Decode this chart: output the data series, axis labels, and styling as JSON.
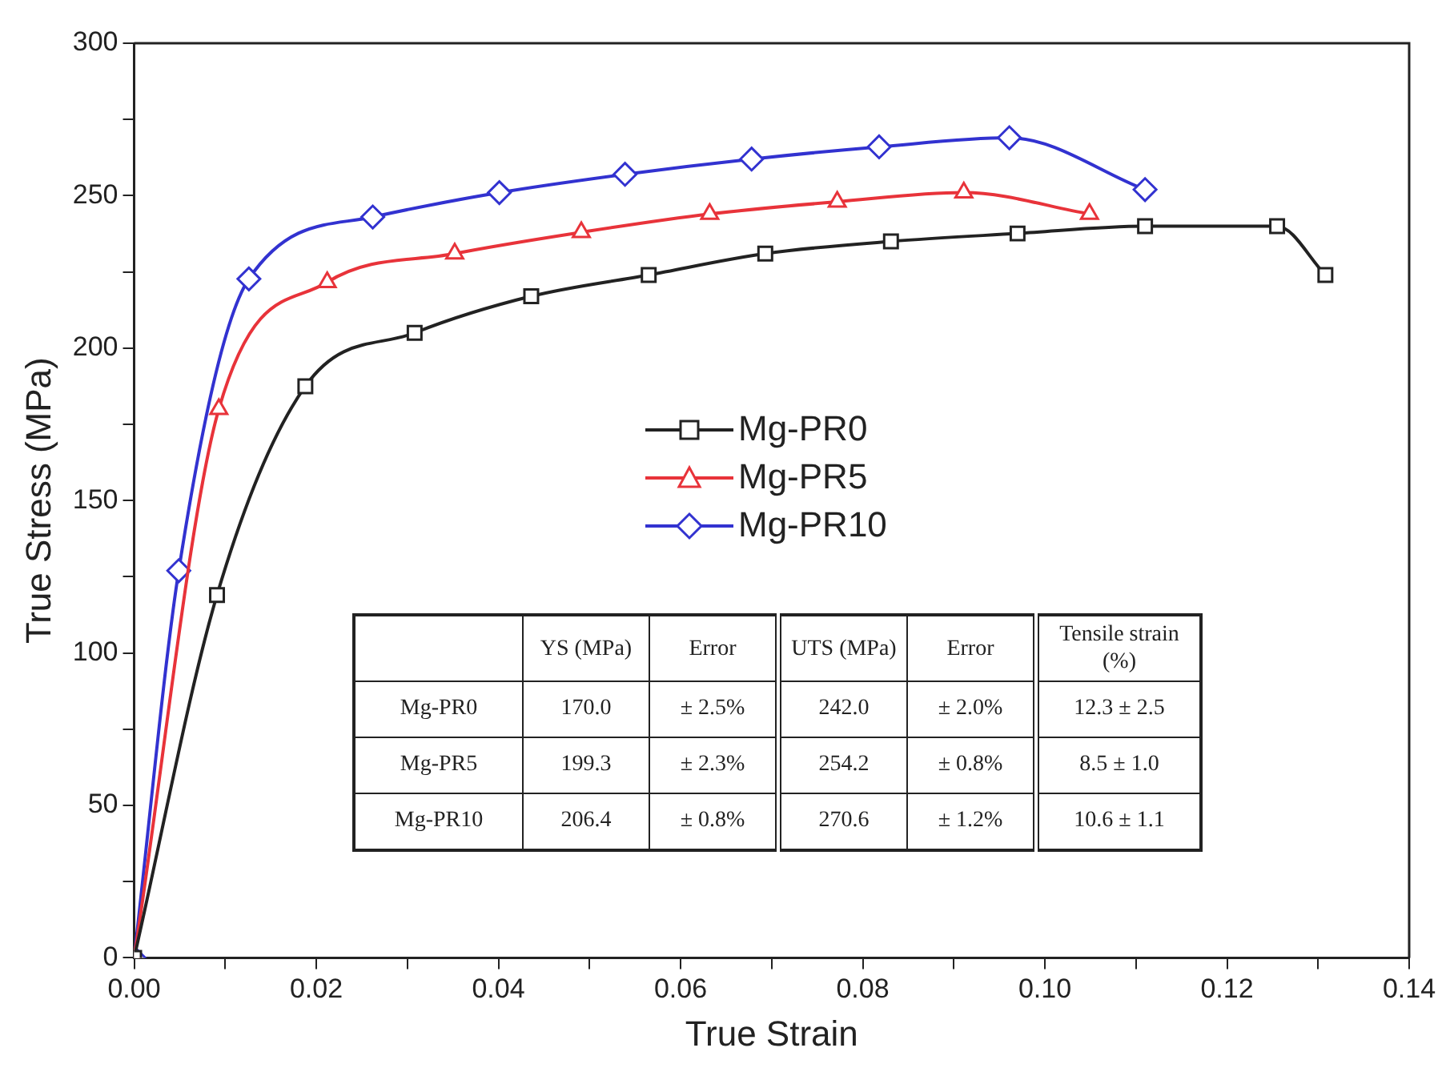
{
  "chart_data": {
    "type": "line",
    "xlabel": "True Strain",
    "ylabel": "True Stress (MPa)",
    "xlim": [
      0,
      0.14
    ],
    "ylim": [
      0,
      300
    ],
    "xticks": [
      {
        "value": 0,
        "label": "0.00"
      },
      {
        "value": 0.01,
        "label": null
      },
      0.02,
      {
        "value": 0.03,
        "label": null
      },
      0.04,
      {
        "value": 0.05,
        "label": null
      },
      0.06,
      {
        "value": 0.07,
        "label": null
      },
      0.08,
      {
        "value": 0.09,
        "label": null
      },
      {
        "value": 0.1,
        "label": "0.10"
      },
      {
        "value": 0.11,
        "label": null
      },
      0.12,
      {
        "value": 0.13,
        "label": null
      },
      0.14
    ],
    "yticks": [
      0,
      {
        "value": 25,
        "label": null
      },
      50,
      {
        "value": 75,
        "label": null
      },
      100,
      {
        "value": 125,
        "label": null
      },
      150,
      {
        "value": 175,
        "label": null
      },
      200,
      {
        "value": 225,
        "label": null
      },
      250,
      {
        "value": 275,
        "label": null
      },
      300
    ],
    "legend": "center",
    "grid": false,
    "line_style": "solid",
    "series": [
      {
        "name": "Mg-PR0",
        "color": "#222222",
        "marker": "square",
        "x": [
          0,
          0.0091,
          0.0188,
          0.0308,
          0.0436,
          0.0565,
          0.0693,
          0.0831,
          0.097,
          0.111,
          0.1255,
          0.1308
        ],
        "values": [
          0,
          119,
          187.5,
          205,
          217,
          224,
          231,
          235,
          237.6,
          240,
          240,
          224
        ]
      },
      {
        "name": "Mg-PR5",
        "color": "#e8333a",
        "marker": "triangle",
        "x": [
          0,
          0.0093,
          0.0212,
          0.0352,
          0.0491,
          0.0632,
          0.0772,
          0.0911,
          0.1049
        ],
        "values": [
          0,
          180,
          221.6,
          231,
          238,
          244,
          248,
          251,
          244
        ]
      },
      {
        "name": "Mg-PR10",
        "color": "#3232d0",
        "marker": "diamond",
        "x": [
          0,
          0.0049,
          0.0126,
          0.0262,
          0.0401,
          0.0539,
          0.0678,
          0.0818,
          0.0961,
          0.111
        ],
        "values": [
          0,
          127,
          222.7,
          243,
          251,
          257,
          262,
          266,
          269,
          252
        ]
      }
    ],
    "annotations": [
      "YS (MPa)",
      "Error",
      "UTS (MPa)",
      "Error",
      "Tensile strain (%)",
      "Mg-PR0",
      "170.0",
      "± 2.5%",
      "242.0",
      "± 2.0%",
      "12.3 ± 2.5",
      "Mg-PR5",
      "199.3",
      "± 2.3%",
      "254.2",
      "± 0.8%",
      "8.5 ± 1.0",
      "Mg-PR10",
      "206.4",
      "± 0.8%",
      "270.6",
      "± 1.2%",
      "10.6 ± 1.1"
    ]
  }
}
